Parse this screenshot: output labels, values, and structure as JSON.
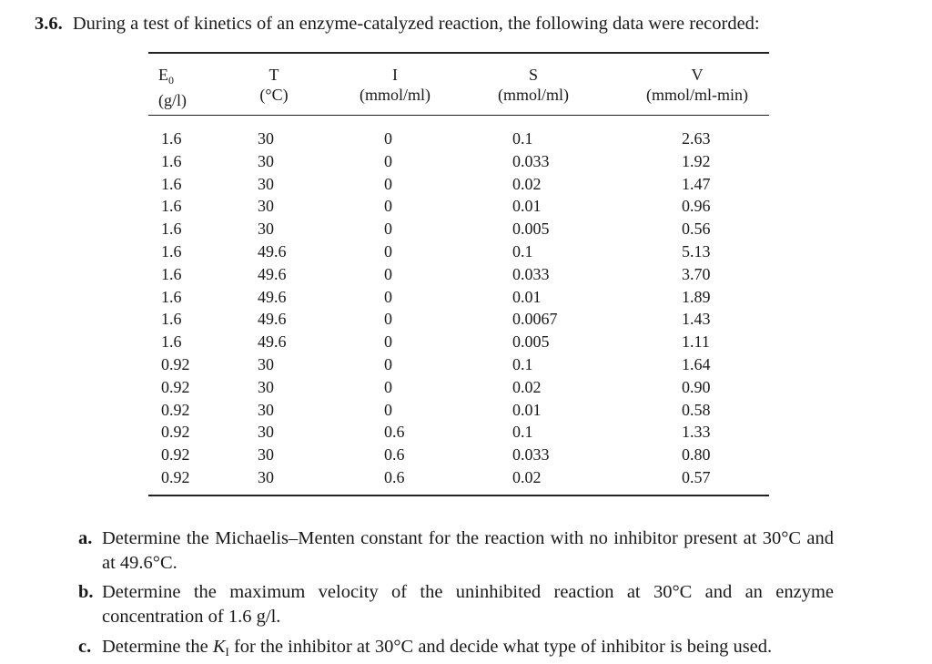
{
  "problem": {
    "number": "3.6.",
    "text": "During a test of kinetics of an enzyme-catalyzed reaction, the following data were recorded:"
  },
  "table": {
    "headers": [
      {
        "symbol": "E",
        "subscript": "0",
        "unit": "(g/l)"
      },
      {
        "symbol": "T",
        "subscript": "",
        "unit": "(°C)"
      },
      {
        "symbol": "I",
        "subscript": "",
        "unit": "(mmol/ml)"
      },
      {
        "symbol": "S",
        "subscript": "",
        "unit": "(mmol/ml)"
      },
      {
        "symbol": "V",
        "subscript": "",
        "unit": "(mmol/ml-min)"
      }
    ],
    "rows": [
      [
        "1.6",
        "30",
        "0",
        "0.1",
        "2.63"
      ],
      [
        "1.6",
        "30",
        "0",
        "0.033",
        "1.92"
      ],
      [
        "1.6",
        "30",
        "0",
        "0.02",
        "1.47"
      ],
      [
        "1.6",
        "30",
        "0",
        "0.01",
        "0.96"
      ],
      [
        "1.6",
        "30",
        "0",
        "0.005",
        "0.56"
      ],
      [
        "1.6",
        "49.6",
        "0",
        "0.1",
        "5.13"
      ],
      [
        "1.6",
        "49.6",
        "0",
        "0.033",
        "3.70"
      ],
      [
        "1.6",
        "49.6",
        "0",
        "0.01",
        "1.89"
      ],
      [
        "1.6",
        "49.6",
        "0",
        "0.0067",
        "1.43"
      ],
      [
        "1.6",
        "49.6",
        "0",
        "0.005",
        "1.11"
      ],
      [
        "0.92",
        "30",
        "0",
        "0.1",
        "1.64"
      ],
      [
        "0.92",
        "30",
        "0",
        "0.02",
        "0.90"
      ],
      [
        "0.92",
        "30",
        "0",
        "0.01",
        "0.58"
      ],
      [
        "0.92",
        "30",
        "0.6",
        "0.1",
        "1.33"
      ],
      [
        "0.92",
        "30",
        "0.6",
        "0.033",
        "0.80"
      ],
      [
        "0.92",
        "30",
        "0.6",
        "0.02",
        "0.57"
      ]
    ]
  },
  "questions": {
    "a": {
      "label": "a.",
      "text": "Determine the Michaelis–Menten constant for the reaction with no inhibitor present at 30°C and at 49.6°C."
    },
    "b": {
      "label": "b.",
      "text": "Determine the maximum velocity of the uninhibited reaction at 30°C and an enzyme concentration of 1.6 g/l."
    },
    "c": {
      "label": "c.",
      "text_before": "Determine the ",
      "k_symbol": "K",
      "k_subscript": "I",
      "text_after": " for the inhibitor at 30°C and decide what type of inhibitor is being used."
    }
  }
}
